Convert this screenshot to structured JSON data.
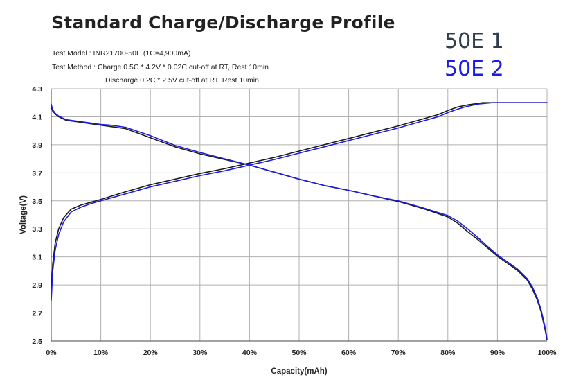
{
  "chart_data": {
    "type": "line",
    "title": "Standard Charge/Discharge Profile",
    "info": [
      "Test Model : INR21700-50E  (1C=4,900mA)",
      "Test Method : Charge 0.5C * 4.2V * 0.02C cut-off at RT, Rest 10min",
      "Discharge 0.2C * 2.5V cut-off at RT, Rest 10min"
    ],
    "xlabel": "Capacity(mAh)",
    "ylabel": "Voltage(V)",
    "xlim": [
      0,
      100
    ],
    "ylim": [
      2.5,
      4.3
    ],
    "x_ticks": [
      "0%",
      "10%",
      "20%",
      "30%",
      "40%",
      "50%",
      "60%",
      "70%",
      "80%",
      "90%",
      "100%"
    ],
    "y_ticks": [
      "2.5",
      "2.7",
      "2.9",
      "3.1",
      "3.3",
      "3.5",
      "3.7",
      "3.9",
      "4.1",
      "4.3"
    ],
    "grid": true,
    "legend_position": "top-right",
    "series": [
      {
        "name": "50E 1",
        "color": "#1a1a1a",
        "curves": [
          {
            "kind": "charge",
            "x": [
              0,
              0.3,
              0.8,
              1.5,
              2.5,
              4,
              6,
              8,
              10,
              15,
              20,
              25,
              30,
              35,
              40,
              45,
              50,
              55,
              60,
              65,
              70,
              75,
              78,
              80,
              82,
              84,
              86,
              87,
              88,
              90,
              95,
              100
            ],
            "y": [
              2.86,
              3.05,
              3.2,
              3.3,
              3.38,
              3.44,
              3.47,
              3.49,
              3.51,
              3.565,
              3.615,
              3.655,
              3.695,
              3.73,
              3.77,
              3.81,
              3.855,
              3.9,
              3.945,
              3.99,
              4.035,
              4.085,
              4.115,
              4.145,
              4.17,
              4.185,
              4.195,
              4.2,
              4.2,
              4.2,
              4.2,
              4.2
            ]
          },
          {
            "kind": "discharge",
            "x": [
              0,
              0.3,
              0.8,
              1.5,
              3,
              5,
              8,
              10,
              12,
              15,
              20,
              25,
              30,
              35,
              40,
              45,
              50,
              55,
              60,
              65,
              70,
              75,
              80,
              82,
              84,
              86,
              88,
              90,
              92,
              94,
              96,
              97,
              98,
              98.8,
              99.5,
              100
            ],
            "y": [
              4.175,
              4.14,
              4.12,
              4.1,
              4.075,
              4.065,
              4.05,
              4.04,
              4.03,
              4.015,
              3.95,
              3.885,
              3.835,
              3.795,
              3.755,
              3.705,
              3.655,
              3.61,
              3.575,
              3.535,
              3.495,
              3.445,
              3.385,
              3.34,
              3.28,
              3.225,
              3.165,
              3.105,
              3.055,
              3.005,
              2.935,
              2.875,
              2.795,
              2.71,
              2.6,
              2.51
            ]
          }
        ]
      },
      {
        "name": "50E 2",
        "color": "#1d1de0",
        "curves": [
          {
            "kind": "charge",
            "x": [
              0,
              0.3,
              0.8,
              1.5,
              2.5,
              4,
              6,
              8,
              10,
              15,
              20,
              25,
              30,
              35,
              40,
              45,
              50,
              55,
              60,
              65,
              70,
              75,
              78,
              80,
              82,
              84,
              86,
              88,
              89,
              90,
              95,
              100
            ],
            "y": [
              2.79,
              3.0,
              3.15,
              3.26,
              3.35,
              3.42,
              3.455,
              3.48,
              3.5,
              3.55,
              3.6,
              3.64,
              3.68,
              3.715,
              3.755,
              3.795,
              3.84,
              3.885,
              3.93,
              3.975,
              4.02,
              4.07,
              4.1,
              4.13,
              4.155,
              4.175,
              4.19,
              4.197,
              4.2,
              4.2,
              4.2,
              4.2
            ]
          },
          {
            "kind": "discharge",
            "x": [
              0,
              0.3,
              0.8,
              1.5,
              3,
              5,
              8,
              10,
              12,
              15,
              20,
              25,
              30,
              35,
              40,
              45,
              50,
              55,
              60,
              65,
              70,
              75,
              80,
              82,
              84,
              86,
              88,
              90,
              92,
              94,
              96,
              97,
              98,
              98.8,
              99.5,
              100
            ],
            "y": [
              4.19,
              4.15,
              4.125,
              4.105,
              4.08,
              4.07,
              4.055,
              4.045,
              4.04,
              4.025,
              3.965,
              3.895,
              3.845,
              3.8,
              3.755,
              3.705,
              3.655,
              3.61,
              3.575,
              3.535,
              3.5,
              3.45,
              3.395,
              3.355,
              3.3,
              3.24,
              3.175,
              3.115,
              3.065,
              3.015,
              2.945,
              2.89,
              2.81,
              2.725,
              2.615,
              2.52
            ]
          }
        ]
      }
    ]
  }
}
